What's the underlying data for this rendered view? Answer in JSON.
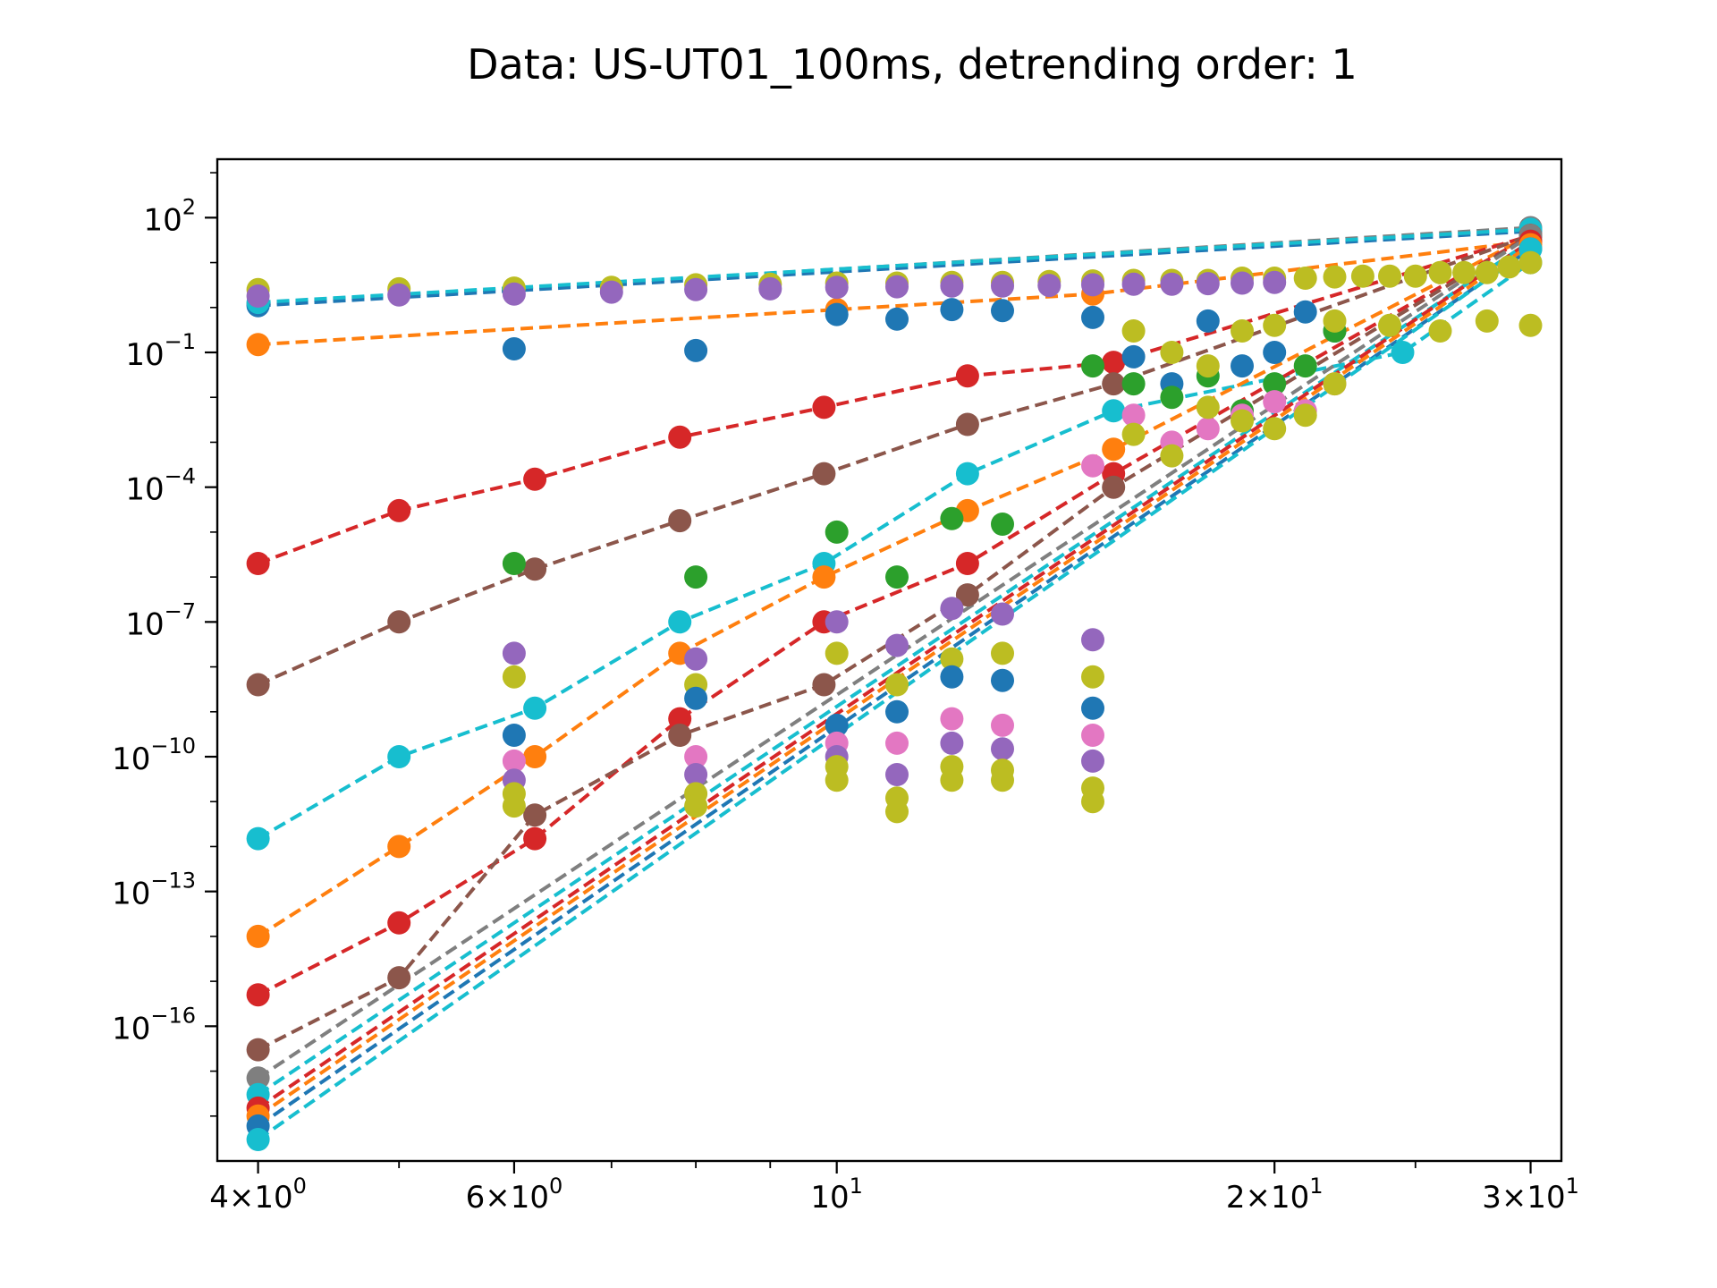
{
  "chart_data": {
    "type": "scatter",
    "title": "Data: US-UT01_100ms, detrending order: 1",
    "xlabel": "",
    "ylabel": "",
    "xscale": "log",
    "yscale": "log",
    "xlim": [
      3.75,
      31.5
    ],
    "ylim": [
      1e-19,
      2000.0
    ],
    "x_ticks": [
      {
        "value": 4,
        "label": "4×10",
        "exp": "0"
      },
      {
        "value": 6,
        "label": "6×10",
        "exp": "0"
      },
      {
        "value": 10,
        "label": "10",
        "exp": "1"
      },
      {
        "value": 20,
        "label": "2×10",
        "exp": "1"
      },
      {
        "value": 30,
        "label": "3×10",
        "exp": "1"
      }
    ],
    "y_ticks": [
      {
        "value": 100,
        "label": "10",
        "exp": "2"
      },
      {
        "value": 0.1,
        "label": "10",
        "exp": "−1"
      },
      {
        "value": 0.0001,
        "label": "10",
        "exp": "−4"
      },
      {
        "value": 1e-07,
        "label": "10",
        "exp": "−7"
      },
      {
        "value": 1e-10,
        "label": "10",
        "exp": "−10"
      },
      {
        "value": 1e-13,
        "label": "10",
        "exp": "−13"
      },
      {
        "value": 1e-16,
        "label": "10",
        "exp": "−16"
      }
    ],
    "grid": false,
    "legend": "none",
    "palette": [
      "#1f77b4",
      "#ff7f0e",
      "#2ca02c",
      "#d62728",
      "#9467bd",
      "#8c564b",
      "#e377c2",
      "#7f7f7f",
      "#bcbd22",
      "#17becf"
    ],
    "fit_lines": [
      {
        "color": "#7f7f7f",
        "x": [
          4,
          30
        ],
        "y": [
          1.2,
          60
        ]
      },
      {
        "color": "#1f77b4",
        "x": [
          4,
          30
        ],
        "y": [
          1.1,
          50
        ]
      },
      {
        "color": "#17becf",
        "x": [
          4,
          30
        ],
        "y": [
          1.3,
          55
        ]
      },
      {
        "color": "#ff7f0e",
        "x": [
          4,
          10,
          15,
          30
        ],
        "y": [
          0.15,
          0.9,
          2.0,
          30
        ]
      },
      {
        "color": "#d62728",
        "x": [
          4,
          5,
          6.2,
          7.8,
          9.8,
          12.3,
          15.5,
          30
        ],
        "y": [
          2e-06,
          3e-05,
          0.00015,
          0.0013,
          0.006,
          0.03,
          0.06,
          40
        ]
      },
      {
        "color": "#8c564b",
        "x": [
          4,
          5,
          6.2,
          7.8,
          9.8,
          12.3,
          15.5,
          30
        ],
        "y": [
          4e-09,
          1e-07,
          1.5e-06,
          1.8e-05,
          0.0002,
          0.0025,
          0.02,
          40
        ]
      },
      {
        "color": "#17becf",
        "x": [
          4,
          5,
          6.2,
          7.8,
          9.8,
          12.3,
          15.5,
          24.5,
          30
        ],
        "y": [
          1.5e-12,
          1e-10,
          1.2e-09,
          1e-07,
          2e-06,
          0.0002,
          0.005,
          0.1,
          10
        ]
      },
      {
        "color": "#ff7f0e",
        "x": [
          4,
          5,
          6.2,
          7.8,
          9.8,
          12.3,
          15.5,
          30
        ],
        "y": [
          1e-14,
          1e-12,
          1e-10,
          2e-08,
          1e-06,
          3e-05,
          0.0007,
          40
        ]
      },
      {
        "color": "#d62728",
        "x": [
          4,
          5,
          6.2,
          7.8,
          9.8,
          12.3,
          15.5,
          30
        ],
        "y": [
          5e-16,
          2e-14,
          1.5e-12,
          7e-10,
          1e-07,
          2e-06,
          0.0002,
          40
        ]
      },
      {
        "color": "#8c564b",
        "x": [
          4,
          5,
          6.2,
          7.8,
          9.8,
          12.3,
          15.5,
          30
        ],
        "y": [
          3e-17,
          1.2e-15,
          5e-12,
          3e-10,
          4e-09,
          4e-07,
          0.0001,
          40
        ]
      },
      {
        "color": "#7f7f7f",
        "x": [
          4,
          30
        ],
        "y": [
          7e-18,
          40
        ]
      },
      {
        "color": "#17becf",
        "x": [
          4,
          30
        ],
        "y": [
          3e-18,
          30
        ]
      },
      {
        "color": "#d62728",
        "x": [
          4,
          30
        ],
        "y": [
          1.5e-18,
          30
        ]
      },
      {
        "color": "#ff7f0e",
        "x": [
          4,
          30
        ],
        "y": [
          1e-18,
          25
        ]
      },
      {
        "color": "#1f77b4",
        "x": [
          4,
          30
        ],
        "y": [
          6e-19,
          20
        ]
      },
      {
        "color": "#17becf",
        "x": [
          4,
          30
        ],
        "y": [
          3e-19,
          20
        ]
      }
    ],
    "series": [
      {
        "color": "#bcbd22",
        "x": [
          4,
          5,
          6,
          7,
          8,
          9,
          10,
          11,
          12,
          13,
          14,
          15,
          16,
          17,
          18,
          19,
          20,
          21,
          22,
          23,
          24,
          25,
          26,
          27,
          28,
          29,
          30
        ],
        "y": [
          2.5,
          2.6,
          2.7,
          2.8,
          3.2,
          3.3,
          3.5,
          3.5,
          3.6,
          3.6,
          3.8,
          3.9,
          4,
          4,
          4,
          4.5,
          4.5,
          4.5,
          4.8,
          5,
          5,
          5,
          6,
          6,
          6,
          8,
          10
        ]
      },
      {
        "color": "#9467bd",
        "x": [
          4,
          5,
          6,
          7,
          8,
          9,
          10,
          11,
          12,
          13,
          14,
          15,
          16,
          17,
          18,
          19,
          20
        ],
        "y": [
          1.8,
          1.9,
          2.0,
          2.2,
          2.5,
          2.6,
          2.8,
          2.9,
          3,
          3,
          3.1,
          3.2,
          3.3,
          3.3,
          3.4,
          3.5,
          3.6
        ]
      },
      {
        "color": "#1f77b4",
        "x": [
          6,
          8,
          10,
          11,
          12,
          13,
          15,
          16,
          17,
          18,
          19,
          20,
          21,
          22
        ],
        "y": [
          0.12,
          0.11,
          0.7,
          0.55,
          0.9,
          0.85,
          0.6,
          0.08,
          0.02,
          0.5,
          0.05,
          0.1,
          0.8,
          0.3
        ]
      },
      {
        "color": "#2ca02c",
        "x": [
          6,
          8,
          10,
          11,
          12,
          13,
          15,
          16,
          17,
          18,
          19,
          20,
          21,
          22
        ],
        "y": [
          2e-06,
          1e-06,
          1e-05,
          1e-06,
          2e-05,
          1.5e-05,
          0.05,
          0.02,
          0.01,
          0.03,
          0.005,
          0.02,
          0.05,
          0.3
        ]
      },
      {
        "color": "#9467bd",
        "x": [
          6,
          8,
          10,
          11,
          12,
          13,
          15
        ],
        "y": [
          2e-08,
          1.5e-08,
          1e-07,
          3e-08,
          2e-07,
          1.5e-07,
          4e-08
        ]
      },
      {
        "color": "#bcbd22",
        "x": [
          6,
          8,
          10,
          11,
          12,
          13,
          15,
          16,
          17,
          18,
          19,
          20
        ],
        "y": [
          6e-09,
          4e-09,
          2e-08,
          4e-09,
          1.5e-08,
          2e-08,
          6e-09,
          0.3,
          0.1,
          0.05,
          0.3,
          0.4
        ]
      },
      {
        "color": "#1f77b4",
        "x": [
          6,
          8,
          10,
          11,
          12,
          13,
          15
        ],
        "y": [
          3e-10,
          2e-09,
          5e-10,
          1e-09,
          6e-09,
          5e-09,
          1.2e-09
        ]
      },
      {
        "color": "#e377c2",
        "x": [
          6,
          8,
          10,
          11,
          12,
          13,
          15
        ],
        "y": [
          8e-11,
          1e-10,
          2e-10,
          2e-10,
          7e-10,
          5e-10,
          3e-10
        ]
      },
      {
        "color": "#9467bd",
        "x": [
          6,
          8,
          10,
          11,
          12,
          13,
          15
        ],
        "y": [
          3e-11,
          4e-11,
          1e-10,
          4e-11,
          2e-10,
          1.5e-10,
          8e-11
        ]
      },
      {
        "color": "#bcbd22",
        "x": [
          6,
          8,
          10,
          11,
          12,
          13,
          15
        ],
        "y": [
          1.5e-11,
          1.5e-11,
          6e-11,
          1.2e-11,
          6e-11,
          5e-11,
          2e-11
        ]
      },
      {
        "color": "#bcbd22",
        "x": [
          6,
          8,
          10,
          11,
          12,
          13,
          15
        ],
        "y": [
          8e-12,
          8e-12,
          3e-11,
          6e-12,
          3e-11,
          3e-11,
          1e-11
        ]
      },
      {
        "color": "#e377c2",
        "x": [
          15,
          16,
          17,
          18,
          19,
          20,
          21,
          22
        ],
        "y": [
          0.0003,
          0.004,
          0.001,
          0.002,
          0.004,
          0.008,
          0.005,
          0.02
        ]
      },
      {
        "color": "#bcbd22",
        "x": [
          16,
          17,
          18,
          19,
          20,
          21,
          22
        ],
        "y": [
          0.0015,
          0.0005,
          0.006,
          0.003,
          0.002,
          0.004,
          0.02
        ]
      },
      {
        "color": "#bcbd22",
        "x": [
          22,
          24,
          26,
          28,
          30
        ],
        "y": [
          0.5,
          0.4,
          0.3,
          0.5,
          0.4
        ]
      }
    ]
  }
}
